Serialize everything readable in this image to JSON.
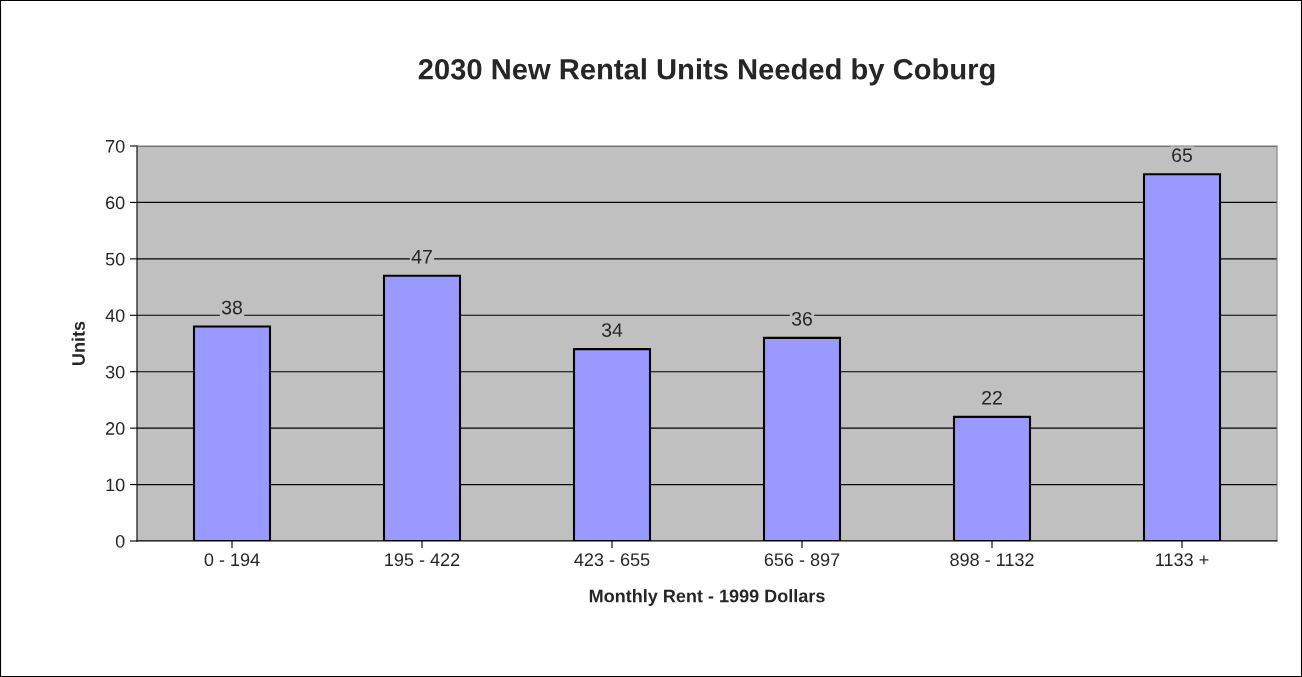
{
  "chart_data": {
    "type": "bar",
    "title": "2030 New Rental Units Needed by Coburg",
    "xlabel": "Monthly Rent - 1999 Dollars",
    "ylabel": "Units",
    "categories": [
      "0 - 194",
      "195 - 422",
      "423 - 655",
      "656 - 897",
      "898 - 1132",
      "1133 +"
    ],
    "values": [
      38,
      47,
      34,
      36,
      22,
      65
    ],
    "color": "#9999ff",
    "ylim": [
      0,
      70
    ],
    "yticks": [
      0,
      10,
      20,
      30,
      40,
      50,
      60,
      70
    ],
    "grid": "y",
    "data_labels": true,
    "legend": false
  }
}
